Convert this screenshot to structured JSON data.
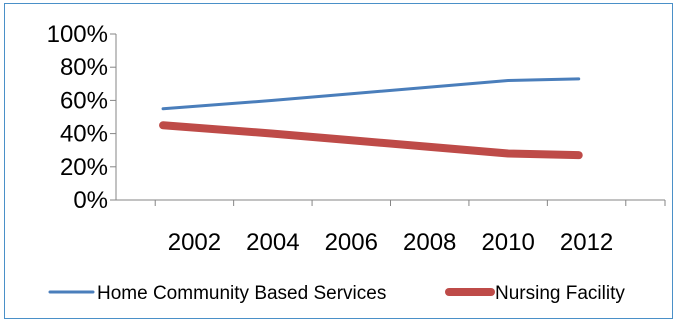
{
  "chart_data": {
    "type": "line",
    "x": [
      "2002",
      "2004",
      "2006",
      "2008",
      "2010",
      "2012"
    ],
    "x_values": [
      2002,
      2004,
      2006,
      2008,
      2010,
      2012
    ],
    "x_plot": [
      2001.2,
      2011.8
    ],
    "xlim": [
      2000,
      2014
    ],
    "ylim": [
      0,
      100
    ],
    "yticks": [
      "0%",
      "20%",
      "40%",
      "60%",
      "80%",
      "100%"
    ],
    "ytick_values": [
      0,
      20,
      40,
      60,
      80,
      100
    ],
    "grid": false,
    "legend": "bottom",
    "series": [
      {
        "name": "Home Community Based Services",
        "color": "#4a7ebb",
        "points": [
          [
            2001.2,
            55
          ],
          [
            2004,
            60
          ],
          [
            2006,
            64
          ],
          [
            2008,
            68
          ],
          [
            2010,
            72
          ],
          [
            2011.8,
            73
          ]
        ]
      },
      {
        "name": "Nursing Facility",
        "color": "#be4b48",
        "points": [
          [
            2001.2,
            45
          ],
          [
            2004,
            40
          ],
          [
            2006,
            36
          ],
          [
            2008,
            32
          ],
          [
            2010,
            28
          ],
          [
            2011.8,
            27
          ]
        ]
      }
    ]
  }
}
